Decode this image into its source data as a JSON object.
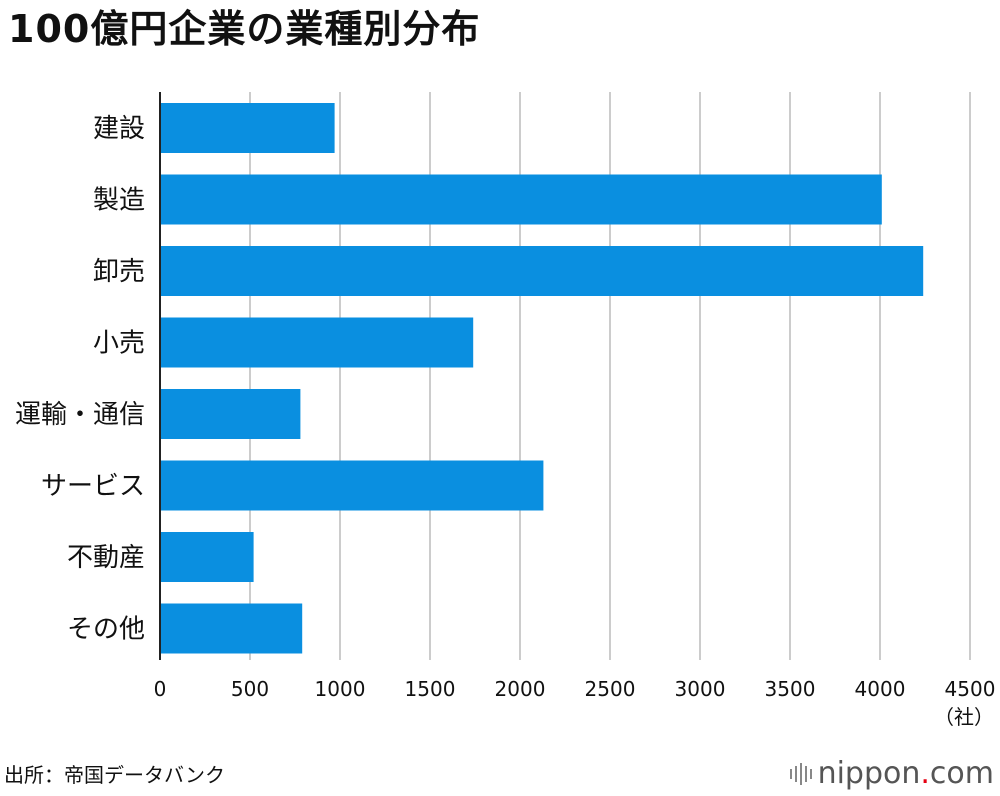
{
  "title": "100億円企業の業種別分布",
  "source": "出所：帝国データバンク",
  "brand": {
    "name": "nippon",
    "dot": ".",
    "tld": "com"
  },
  "colors": {
    "bar": "#0a8fe0",
    "grid": "#cccccc",
    "axis": "#222222"
  },
  "chart_data": {
    "type": "bar",
    "orientation": "horizontal",
    "categories": [
      "建設",
      "製造",
      "卸売",
      "小売",
      "運輸・通信",
      "サービス",
      "不動産",
      "その他"
    ],
    "values": [
      970,
      4010,
      4240,
      1740,
      780,
      2130,
      520,
      790
    ],
    "xlim": [
      0,
      4500
    ],
    "xticks": [
      0,
      500,
      1000,
      1500,
      2000,
      2500,
      3000,
      3500,
      4000,
      4500
    ],
    "xunit": "（社）",
    "grid": true
  }
}
